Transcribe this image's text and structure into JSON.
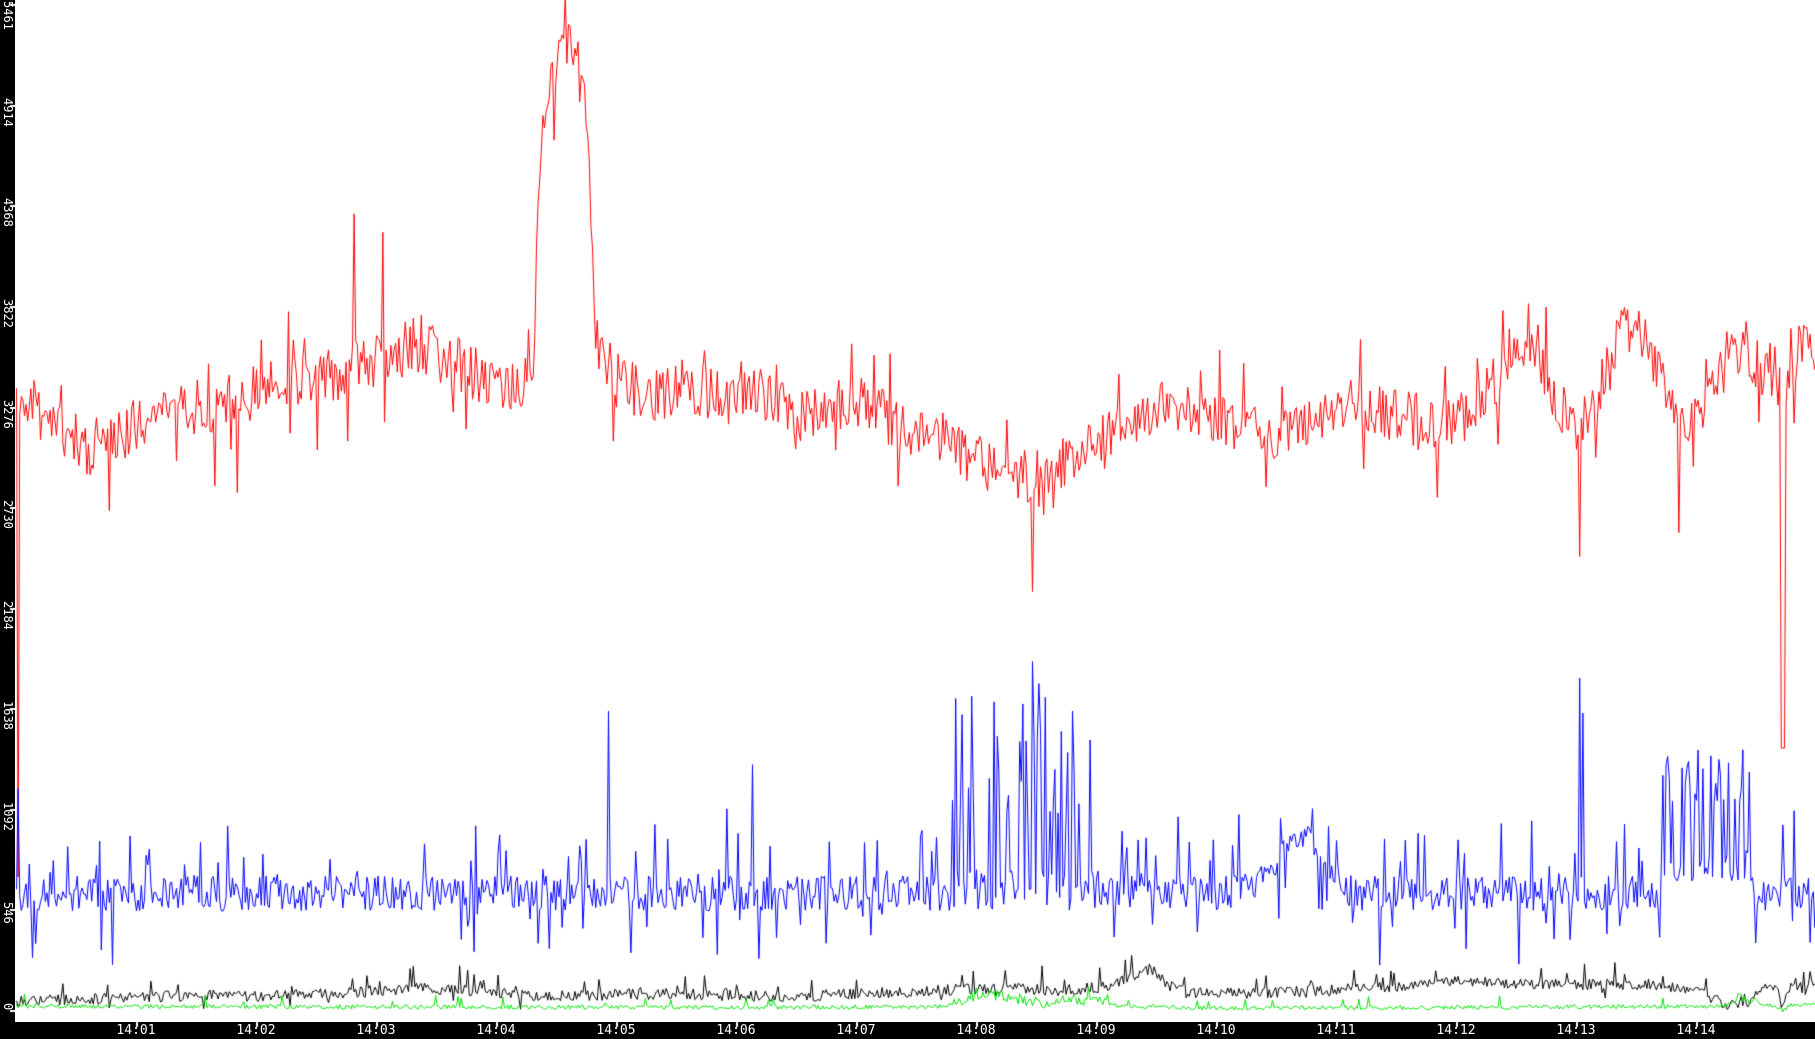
{
  "window": {
    "background": "#ffffff",
    "axis_strip_color": "#000000",
    "axis_label_color": "#ffffff"
  },
  "chart_data": {
    "type": "line",
    "title": "",
    "grid": false,
    "legend": false,
    "x_axis": {
      "label": "",
      "start": "14:00",
      "end": "14:15",
      "tick_labels": [
        "14:01",
        "14:02",
        "14:03",
        "14:04",
        "14:05",
        "14:06",
        "14:07",
        "14:08",
        "14:09",
        "14:10",
        "14:11",
        "14:12",
        "14:13",
        "14:14"
      ],
      "tick_minutes": [
        1,
        2,
        3,
        4,
        5,
        6,
        7,
        8,
        9,
        10,
        11,
        12,
        13,
        14
      ]
    },
    "y_axis": {
      "label": "",
      "min": 0,
      "max": 5461,
      "tick_values": [
        0,
        546,
        1092,
        1638,
        2184,
        2730,
        3276,
        3822,
        4368,
        4914,
        5461
      ],
      "tick_labels": [
        "0",
        "546",
        "1092",
        "1638",
        "2184",
        "2730",
        "3276",
        "3822",
        "4368",
        "4914",
        "5461"
      ]
    },
    "series": [
      {
        "name": "red-series",
        "color": "#ff0000",
        "summary": "baseline ~3100-3600; spike to 4330 at 14:02.8; large plateau peak 4900-5500 from 14:04.4 to 14:04.8; slow sag to ~2850 near 14:08.5 with dip to 2280; dips to 2470 at 14:13.0 and 1430 at 14:14.7",
        "synthesis": {
          "seed": 11,
          "noise": 150,
          "noise_zones": [
            {
              "t0": 4.36,
              "t1": 4.82,
              "amp": 130
            }
          ],
          "keypoints": [
            [
              0,
              3380
            ],
            [
              0.3,
              3180
            ],
            [
              0.6,
              3060
            ],
            [
              0.9,
              3150
            ],
            [
              1.2,
              3230
            ],
            [
              1.5,
              3270
            ],
            [
              1.8,
              3320
            ],
            [
              2.1,
              3390
            ],
            [
              2.4,
              3440
            ],
            [
              2.7,
              3470
            ],
            [
              3.0,
              3520
            ],
            [
              3.3,
              3620
            ],
            [
              3.6,
              3540
            ],
            [
              3.9,
              3430
            ],
            [
              4.15,
              3360
            ],
            [
              4.3,
              3480
            ],
            [
              4.38,
              4880
            ],
            [
              4.5,
              5120
            ],
            [
              4.62,
              5280
            ],
            [
              4.72,
              5060
            ],
            [
              4.78,
              4420
            ],
            [
              4.83,
              3640
            ],
            [
              5.0,
              3430
            ],
            [
              5.3,
              3340
            ],
            [
              5.6,
              3410
            ],
            [
              5.9,
              3310
            ],
            [
              6.2,
              3360
            ],
            [
              6.5,
              3230
            ],
            [
              6.8,
              3310
            ],
            [
              7.1,
              3290
            ],
            [
              7.4,
              3160
            ],
            [
              7.7,
              3110
            ],
            [
              8.0,
              2990
            ],
            [
              8.3,
              2910
            ],
            [
              8.5,
              2840
            ],
            [
              8.7,
              2960
            ],
            [
              9.0,
              3060
            ],
            [
              9.3,
              3210
            ],
            [
              9.6,
              3290
            ],
            [
              9.9,
              3250
            ],
            [
              10.2,
              3160
            ],
            [
              10.5,
              3130
            ],
            [
              10.8,
              3230
            ],
            [
              11.1,
              3290
            ],
            [
              11.4,
              3250
            ],
            [
              11.7,
              3210
            ],
            [
              12.0,
              3190
            ],
            [
              12.3,
              3400
            ],
            [
              12.55,
              3600
            ],
            [
              12.65,
              3650
            ],
            [
              12.8,
              3380
            ],
            [
              13.0,
              3120
            ],
            [
              13.15,
              3280
            ],
            [
              13.35,
              3650
            ],
            [
              13.5,
              3720
            ],
            [
              13.65,
              3500
            ],
            [
              13.8,
              3300
            ],
            [
              13.95,
              3230
            ],
            [
              14.1,
              3320
            ],
            [
              14.25,
              3540
            ],
            [
              14.4,
              3620
            ],
            [
              14.55,
              3470
            ],
            [
              14.65,
              3420
            ],
            [
              14.72,
              3350
            ],
            [
              14.78,
              3320
            ],
            [
              14.85,
              3640
            ],
            [
              15,
              3510
            ]
          ],
          "jitter": [
            {
              "p": 0.035,
              "lo": -480,
              "hi": -140
            },
            {
              "p": 0.04,
              "lo": 130,
              "hi": 330
            }
          ],
          "events": [
            {
              "t": 0.012,
              "v": 730
            },
            {
              "t": 2.81,
              "v": 4330
            },
            {
              "t": 3.05,
              "v": 4230
            },
            {
              "t": 4.5,
              "v": 5480
            },
            {
              "t": 4.57,
              "v": 5530
            },
            {
              "t": 4.66,
              "v": 5470
            },
            {
              "t": 8.47,
              "v": 2280
            },
            {
              "t": 13.03,
              "v": 2470
            },
            {
              "t": 13.85,
              "v": 2600
            },
            {
              "t": 14.72,
              "v": 1430,
              "w": 1
            }
          ],
          "bursts": []
        }
      },
      {
        "name": "blue-series",
        "color": "#0000ff",
        "summary": "noisy baseline ~640; burst of spikes 14:07.8-14:09.1 topping 1900 at 14:08.5; smooth hill to ~960 at 14:10.7; lone spike 1810 at 14:13.0; second burst 14:13.7-14:14.5 topping ~1430",
        "synthesis": {
          "seed": 22,
          "noise": 95,
          "noise_zones": [
            {
              "t0": 10.35,
              "t1": 11.05,
              "amp": 80
            }
          ],
          "keypoints": [
            [
              0,
              640
            ],
            [
              10.2,
              642
            ],
            [
              10.45,
              770
            ],
            [
              10.6,
              880
            ],
            [
              10.72,
              960
            ],
            [
              10.82,
              900
            ],
            [
              10.95,
              760
            ],
            [
              11.08,
              660
            ],
            [
              11.2,
              640
            ],
            [
              15,
              640
            ]
          ],
          "jitter": [
            {
              "p": 0.09,
              "lo": 110,
              "hi": 340
            },
            {
              "p": 0.05,
              "lo": -330,
              "hi": -140
            }
          ],
          "events": [
            {
              "t": 0.012,
              "v": 1210
            },
            {
              "t": 4.93,
              "v": 1630
            },
            {
              "t": 5.92,
              "v": 1100
            },
            {
              "t": 6.14,
              "v": 1340
            },
            {
              "t": 8.46,
              "v": 1900
            },
            {
              "t": 8.52,
              "v": 1780
            },
            {
              "t": 11.57,
              "v": 930
            },
            {
              "t": 13.03,
              "v": 1810
            },
            {
              "t": 13.06,
              "v": 1620
            },
            {
              "t": 14.81,
              "v": 1090
            }
          ],
          "bursts": [
            {
              "t0": 7.78,
              "t1": 9.07,
              "prob": 0.42,
              "base": 660,
              "base_noise": 110,
              "top_min": 1050,
              "top_max": 1720
            },
            {
              "t0": 13.7,
              "t1": 14.47,
              "prob": 0.48,
              "base": 800,
              "base_noise": 95,
              "top_min": 1120,
              "top_max": 1430
            }
          ]
        }
      },
      {
        "name": "black-series",
        "color": "#000000",
        "summary": "low band ~50-170 slowly undulating; bump to ~240 at 14:09.4; dips to ~10 at 14:14.2-14:14.4 and 14:14.7",
        "synthesis": {
          "seed": 33,
          "noise": 30,
          "noise_zones": [],
          "keypoints": [
            [
              0,
              55
            ],
            [
              0.5,
              65
            ],
            [
              1,
              78
            ],
            [
              1.5,
              88
            ],
            [
              2,
              82
            ],
            [
              2.5,
              95
            ],
            [
              3,
              108
            ],
            [
              3.4,
              128
            ],
            [
              3.8,
              112
            ],
            [
              4.2,
              88
            ],
            [
              4.6,
              82
            ],
            [
              5,
              92
            ],
            [
              5.5,
              96
            ],
            [
              6,
              86
            ],
            [
              6.5,
              82
            ],
            [
              7,
              95
            ],
            [
              7.5,
              108
            ],
            [
              7.9,
              122
            ],
            [
              8.3,
              126
            ],
            [
              8.7,
              112
            ],
            [
              9.1,
              135
            ],
            [
              9.45,
              235
            ],
            [
              9.6,
              140
            ],
            [
              9.8,
              105
            ],
            [
              10.2,
              96
            ],
            [
              10.6,
              106
            ],
            [
              11,
              118
            ],
            [
              11.4,
              132
            ],
            [
              11.8,
              148
            ],
            [
              12.1,
              168
            ],
            [
              12.4,
              152
            ],
            [
              12.7,
              148
            ],
            [
              13,
              142
            ],
            [
              13.3,
              152
            ],
            [
              13.6,
              138
            ],
            [
              13.9,
              128
            ],
            [
              14.1,
              80
            ],
            [
              14.25,
              35
            ],
            [
              14.4,
              25
            ],
            [
              14.5,
              110
            ],
            [
              14.62,
              145
            ],
            [
              14.68,
              120
            ],
            [
              14.72,
              12
            ],
            [
              14.78,
              130
            ],
            [
              14.9,
              150
            ],
            [
              15,
              160
            ]
          ],
          "jitter": [
            {
              "p": 0.05,
              "lo": 35,
              "hi": 110
            },
            {
              "p": 0.02,
              "lo": -55,
              "hi": -25
            }
          ],
          "events": [],
          "bursts": []
        }
      },
      {
        "name": "green-series",
        "color": "#00e400",
        "summary": "flat ~20-35 band; elevated noisy bump ~60-115 from 14:07.8 to 14:09.1; small bump near 14:14.4; brief drop to ~5 at 14:14.7",
        "synthesis": {
          "seed": 44,
          "noise": 12,
          "noise_zones": [
            {
              "t0": 7.8,
              "t1": 9.1,
              "amp": 30
            },
            {
              "t0": 14.28,
              "t1": 14.5,
              "amp": 24
            }
          ],
          "keypoints": [
            [
              0,
              30
            ],
            [
              2,
              26
            ],
            [
              4,
              24
            ],
            [
              6,
              22
            ],
            [
              7.7,
              26
            ],
            [
              7.9,
              62
            ],
            [
              8.05,
              95
            ],
            [
              8.2,
              86
            ],
            [
              8.4,
              60
            ],
            [
              8.55,
              45
            ],
            [
              8.7,
              55
            ],
            [
              9.0,
              60
            ],
            [
              9.15,
              30
            ],
            [
              10,
              18
            ],
            [
              12,
              22
            ],
            [
              14.25,
              30
            ],
            [
              14.35,
              78
            ],
            [
              14.45,
              60
            ],
            [
              14.55,
              42
            ],
            [
              14.66,
              34
            ],
            [
              14.72,
              6
            ],
            [
              14.78,
              36
            ],
            [
              15,
              40
            ]
          ],
          "jitter": [
            {
              "p": 0.025,
              "lo": 25,
              "hi": 70
            }
          ],
          "events": [],
          "bursts": []
        }
      }
    ]
  }
}
